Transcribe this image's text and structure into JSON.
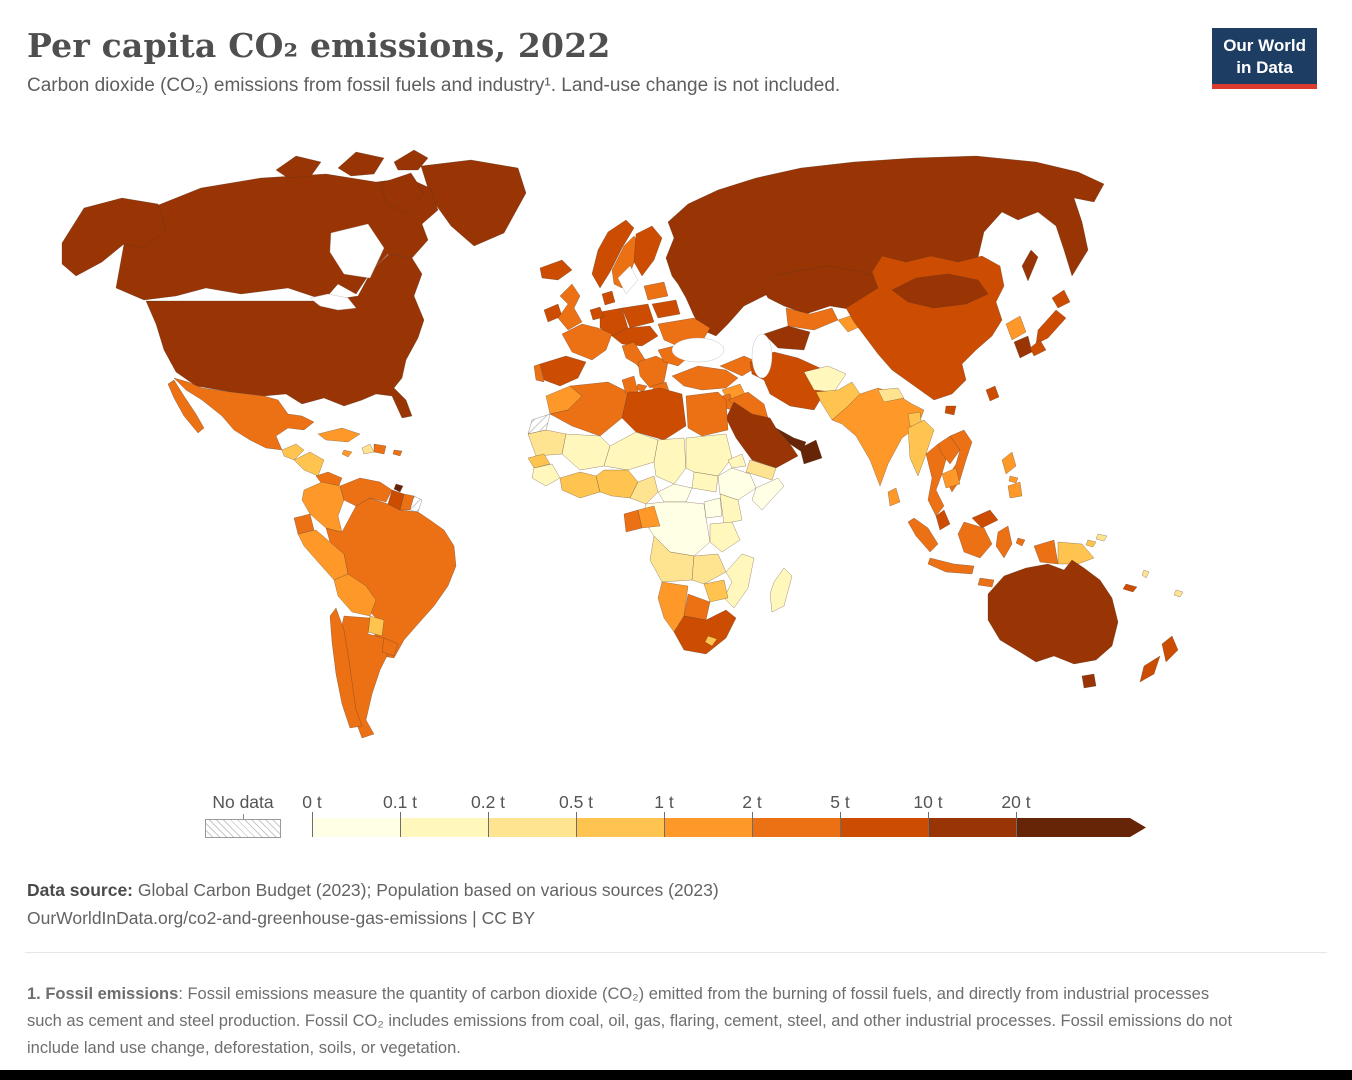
{
  "header": {
    "title": "Per capita CO₂ emissions, 2022",
    "subtitle": "Carbon dioxide (CO₂) emissions from fossil fuels and industry¹. Land-use change is not included.",
    "logo": {
      "line1": "Our World",
      "line2": "in Data"
    }
  },
  "legend": {
    "no_data_label": "No data"
  },
  "source": {
    "label": "Data source:",
    "text": " Global Carbon Budget (2023); Population based on various sources (2023)",
    "link_line": "OurWorldInData.org/co2-and-greenhouse-gas-emissions | CC BY"
  },
  "footnote": {
    "term": "1. Fossil emissions",
    "text": ": Fossil emissions measure the quantity of carbon dioxide (CO₂) emitted from the burning of fossil fuels, and directly from industrial processes such as cement and steel production. Fossil CO₂ includes emissions from coal, oil, gas, flaring, cement, steel, and other industrial processes. Fossil emissions do not include land use change, deforestation, soils, or vegetation."
  },
  "colors": {
    "logo_navy": "#1d3d63",
    "logo_red": "#dc3a2e",
    "no_data_hatch": "#c9c9c9"
  },
  "chart_data": {
    "type": "heatmap",
    "variant": "world-choropleth",
    "title": "Per capita CO₂ emissions, 2022",
    "year": 2022,
    "unit": "tonnes of CO₂ per person",
    "legend_position": "bottom",
    "bins": [
      {
        "label": "0 t",
        "range": [
          0,
          0.1
        ],
        "color": "#ffffe5"
      },
      {
        "label": "0.1 t",
        "range": [
          0.1,
          0.2
        ],
        "color": "#fff7bc"
      },
      {
        "label": "0.2 t",
        "range": [
          0.2,
          0.5
        ],
        "color": "#fee391"
      },
      {
        "label": "0.5 t",
        "range": [
          0.5,
          1
        ],
        "color": "#fec44f"
      },
      {
        "label": "1 t",
        "range": [
          1,
          2
        ],
        "color": "#fe9929"
      },
      {
        "label": "2 t",
        "range": [
          2,
          5
        ],
        "color": "#ec7014"
      },
      {
        "label": "5 t",
        "range": [
          5,
          10
        ],
        "color": "#cc4c02"
      },
      {
        "label": "10 t",
        "range": [
          10,
          20
        ],
        "color": "#993404"
      },
      {
        "label": "20 t",
        "range": [
          20,
          null
        ],
        "color": "#662506"
      }
    ],
    "no_data_regions": [
      "western-sahara",
      "french-guiana"
    ],
    "region_bins": {
      "greenland": 7,
      "canada": 7,
      "united-states": 7,
      "mexico": 5,
      "guatemala": 3,
      "honduras-nicaragua": 3,
      "costa-rica-panama": 5,
      "cuba": 4,
      "jamaica": 4,
      "haiti": 2,
      "dominican-republic": 5,
      "puerto-rico": 5,
      "trinidad-and-tobago": 8,
      "colombia": 4,
      "venezuela": 5,
      "guyana": 6,
      "suriname": 5,
      "french-guiana": -1,
      "ecuador": 5,
      "peru": 4,
      "brazil": 5,
      "bolivia": 4,
      "paraguay": 3,
      "chile": 5,
      "argentina": 5,
      "uruguay": 5,
      "iceland": 6,
      "ireland": 6,
      "united-kingdom": 5,
      "norway": 6,
      "sweden": 5,
      "finland": 6,
      "denmark": 6,
      "baltics": 5,
      "belarus": 6,
      "poland": 6,
      "germany": 6,
      "benelux": 6,
      "france": 5,
      "spain": 6,
      "portugal": 5,
      "italy": 5,
      "central-europe": 6,
      "balkans": 5,
      "greece": 5,
      "romania": 5,
      "ukraine": 5,
      "russia": 7,
      "kazakhstan": 7,
      "turkmenistan": 7,
      "uzbekistan": 5,
      "kyrgyzstan-tajikistan": 4,
      "caucasus": 5,
      "turkey": 5,
      "syria": 4,
      "iraq": 5,
      "iran": 6,
      "saudi-arabia": 7,
      "gulf-states": 8,
      "oman": 8,
      "yemen": 2,
      "israel-jordan": 5,
      "morocco": 4,
      "western-sahara": -1,
      "algeria": 5,
      "tunisia": 5,
      "libya": 6,
      "egypt": 5,
      "mauritania": 2,
      "mali": 1,
      "niger": 1,
      "chad": 1,
      "sudan": 1,
      "eritrea": 1,
      "senegal": 3,
      "guinea": 1,
      "ivory-coast-ghana": 3,
      "nigeria": 3,
      "cameroon": 2,
      "central-african-republic": 0,
      "south-sudan": 1,
      "ethiopia": 0,
      "somalia": 0,
      "kenya": 1,
      "uganda": 0,
      "democratic-republic-of-congo": 0,
      "gabon": 5,
      "congo": 4,
      "tanzania": 1,
      "angola": 2,
      "zambia": 2,
      "mozambique": 1,
      "zimbabwe": 3,
      "botswana": 5,
      "namibia": 4,
      "south-africa": 6,
      "lesotho": 3,
      "madagascar": 1,
      "afghanistan": 1,
      "pakistan": 3,
      "india": 4,
      "nepal": 2,
      "bangladesh": 3,
      "sri-lanka": 4,
      "myanmar": 3,
      "thailand": 5,
      "laos": 5,
      "vietnam": 5,
      "cambodia": 4,
      "malaysia": 6,
      "indonesia": 5,
      "papua-new-guinea": 3,
      "philippines": 4,
      "china": 6,
      "mongolia": 7,
      "north-korea": 4,
      "south-korea": 7,
      "japan": 6,
      "taiwan": 6,
      "australia": 7,
      "new-zealand": 6,
      "new-caledonia": 6,
      "vanuatu": 2,
      "fiji": 2,
      "solomon-islands": 2
    }
  }
}
